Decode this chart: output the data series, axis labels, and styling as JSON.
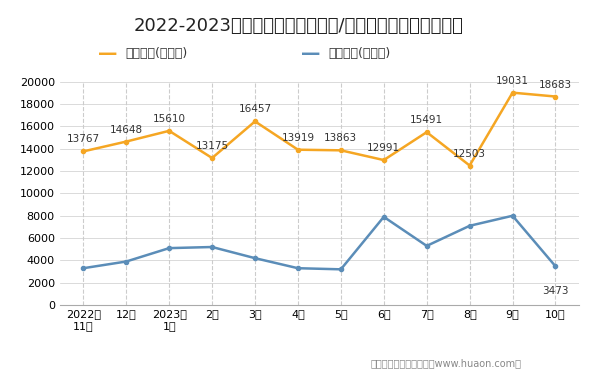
{
  "title": "2022-2023年株洲市（境内目的地/货源地）进、出口额统计",
  "categories": [
    "2022年\n11月",
    "12月",
    "2023年\n1月",
    "2月",
    "3月",
    "4月",
    "5月",
    "6月",
    "7月",
    "8月",
    "9月",
    "10月"
  ],
  "export_values": [
    13767,
    14648,
    15610,
    13175,
    16457,
    13919,
    13863,
    12991,
    15491,
    12503,
    19031,
    18683
  ],
  "import_values": [
    3300,
    3900,
    5100,
    5200,
    4200,
    3300,
    3200,
    7900,
    5300,
    7100,
    8000,
    3473
  ],
  "export_label": "出口总额(万美元)",
  "import_label": "进口总额(万美元)",
  "export_color": "#F5A623",
  "import_color": "#5B8DB8",
  "ylim": [
    0,
    20000
  ],
  "yticks": [
    0,
    2000,
    4000,
    6000,
    8000,
    10000,
    12000,
    14000,
    16000,
    18000,
    20000
  ],
  "bg_color": "#FFFFFF",
  "grid_color": "#CCCCCC",
  "footer": "制图：华经产业研究院（www.huaon.com）",
  "title_fontsize": 13,
  "annotation_fontsize": 7.5,
  "tick_fontsize": 8,
  "legend_fontsize": 9
}
